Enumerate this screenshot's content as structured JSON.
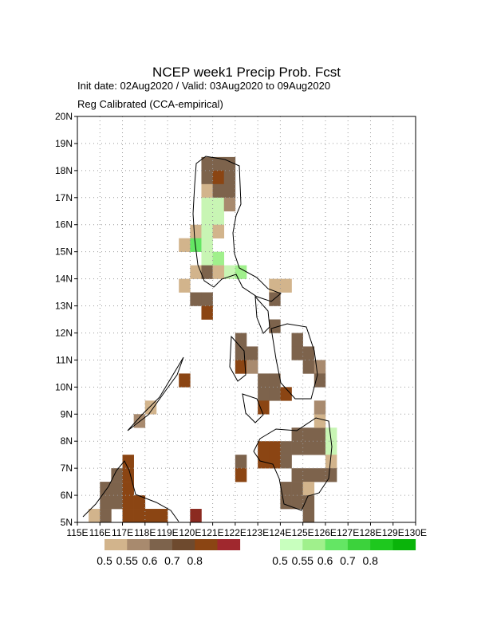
{
  "map": {
    "title": "NCEP week1 Precip Prob. Fcst",
    "subtitle": "Init date: 02Aug2020 / Valid: 03Aug2020 to 09Aug2020",
    "note": "Reg Calibrated (CCA-empirical)",
    "xlim": [
      115,
      130
    ],
    "ylim": [
      5,
      20
    ],
    "xticks": [
      {
        "value": 115,
        "label": "115E"
      },
      {
        "value": 116,
        "label": "116E"
      },
      {
        "value": 117,
        "label": "117E"
      },
      {
        "value": 118,
        "label": "118E"
      },
      {
        "value": 119,
        "label": "119E"
      },
      {
        "value": 120,
        "label": "120E"
      },
      {
        "value": 121,
        "label": "121E"
      },
      {
        "value": 122,
        "label": "122E"
      },
      {
        "value": 123,
        "label": "123E"
      },
      {
        "value": 124,
        "label": "124E"
      },
      {
        "value": 125,
        "label": "125E"
      },
      {
        "value": 126,
        "label": "126E"
      },
      {
        "value": 127,
        "label": "127E"
      },
      {
        "value": 128,
        "label": "128E"
      },
      {
        "value": 129,
        "label": "129E"
      },
      {
        "value": 130,
        "label": "130E"
      }
    ],
    "yticks": [
      {
        "value": 5,
        "label": "5N"
      },
      {
        "value": 6,
        "label": "6N"
      },
      {
        "value": 7,
        "label": "7N"
      },
      {
        "value": 8,
        "label": "8N"
      },
      {
        "value": 9,
        "label": "9N"
      },
      {
        "value": 10,
        "label": "10N"
      },
      {
        "value": 11,
        "label": "11N"
      },
      {
        "value": 12,
        "label": "12N"
      },
      {
        "value": 13,
        "label": "13N"
      },
      {
        "value": 14,
        "label": "14N"
      },
      {
        "value": 15,
        "label": "15N"
      },
      {
        "value": 16,
        "label": "16N"
      },
      {
        "value": 17,
        "label": "17N"
      },
      {
        "value": 18,
        "label": "18N"
      },
      {
        "value": 19,
        "label": "19N"
      },
      {
        "value": 20,
        "label": "20N"
      }
    ],
    "grid": true,
    "cell_size": 0.5,
    "cells": [
      [
        120.5,
        18,
        "#7d634c"
      ],
      [
        121,
        18,
        "#7d634c"
      ],
      [
        121.5,
        18,
        "#7d634c"
      ],
      [
        120.5,
        17.5,
        "#7d634c"
      ],
      [
        121,
        17.5,
        "#8b4513"
      ],
      [
        121.5,
        17.5,
        "#7d634c"
      ],
      [
        120.5,
        17,
        "#d2b48c"
      ],
      [
        121,
        17,
        "#7d634c"
      ],
      [
        121.5,
        17,
        "#7d634c"
      ],
      [
        120.5,
        16.5,
        "#c8f5b4"
      ],
      [
        121,
        16.5,
        "#c8f5b4"
      ],
      [
        121.5,
        16.5,
        "#a88a6e"
      ],
      [
        120.5,
        16,
        "#c8f5b4"
      ],
      [
        121,
        16,
        "#c8f5b4"
      ],
      [
        120,
        15.5,
        "#d2b48c"
      ],
      [
        120.5,
        15.5,
        "#c8f5b4"
      ],
      [
        121,
        15.5,
        "#d2b48c"
      ],
      [
        119.5,
        15,
        "#d2b48c"
      ],
      [
        120,
        15,
        "#64e664"
      ],
      [
        120.5,
        15,
        "#c8f5b4"
      ],
      [
        120.5,
        14.5,
        "#c8f5b4"
      ],
      [
        121,
        14.5,
        "#a0f08c"
      ],
      [
        121.5,
        14,
        "#c8f5b4"
      ],
      [
        122,
        14,
        "#a0f08c"
      ],
      [
        120,
        14,
        "#d2b48c"
      ],
      [
        120.5,
        14,
        "#7d634c"
      ],
      [
        121,
        14,
        "#d2b48c"
      ],
      [
        119.5,
        13.5,
        "#d2b48c"
      ],
      [
        120,
        13,
        "#7d634c"
      ],
      [
        120.5,
        13,
        "#7d634c"
      ],
      [
        120.5,
        12.5,
        "#8b4513"
      ],
      [
        123.5,
        13.5,
        "#d2b48c"
      ],
      [
        124,
        13.5,
        "#d2b48c"
      ],
      [
        123.5,
        13,
        "#7d634c"
      ],
      [
        122,
        11.5,
        "#7d634c"
      ],
      [
        122,
        11,
        "#7d634c"
      ],
      [
        122.5,
        11,
        "#7d634c"
      ],
      [
        122,
        10.5,
        "#8b4513"
      ],
      [
        122.5,
        10.5,
        "#a88a6e"
      ],
      [
        123.5,
        12,
        "#7d634c"
      ],
      [
        124.5,
        11.5,
        "#7d634c"
      ],
      [
        124.5,
        11,
        "#7d634c"
      ],
      [
        125,
        11,
        "#7d634c"
      ],
      [
        125,
        10.5,
        "#7d634c"
      ],
      [
        125.5,
        10.5,
        "#a88a6e"
      ],
      [
        125.5,
        10,
        "#7d634c"
      ],
      [
        123,
        10,
        "#7d634c"
      ],
      [
        123.5,
        10,
        "#7d634c"
      ],
      [
        123,
        9.5,
        "#7d634c"
      ],
      [
        123.5,
        9.5,
        "#7d634c"
      ],
      [
        124,
        9.5,
        "#8b4513"
      ],
      [
        123,
        9,
        "#8b4513"
      ],
      [
        119.5,
        10,
        "#8b4513"
      ],
      [
        118,
        9,
        "#d2b48c"
      ],
      [
        117.5,
        8.5,
        "#a88a6e"
      ],
      [
        123,
        7.5,
        "#8b4513"
      ],
      [
        123.5,
        7.5,
        "#8b4513"
      ],
      [
        123,
        7,
        "#8b4513"
      ],
      [
        123.5,
        7,
        "#8b4513"
      ],
      [
        124,
        7.5,
        "#7d634c"
      ],
      [
        124,
        7,
        "#7d634c"
      ],
      [
        124.5,
        7.5,
        "#7d634c"
      ],
      [
        124.5,
        8,
        "#7d634c"
      ],
      [
        125,
        8,
        "#7d634c"
      ],
      [
        125,
        7.5,
        "#7d634c"
      ],
      [
        125.5,
        8,
        "#7d634c"
      ],
      [
        125.5,
        7.5,
        "#7d634c"
      ],
      [
        125.5,
        8.5,
        "#d2b48c"
      ],
      [
        125.5,
        9,
        "#a88a6e"
      ],
      [
        126,
        8,
        "#c8f5b4"
      ],
      [
        126,
        7.5,
        "#c8f5b4"
      ],
      [
        126,
        7,
        "#d2b48c"
      ],
      [
        124.5,
        6.5,
        "#7d634c"
      ],
      [
        125,
        6.5,
        "#7d634c"
      ],
      [
        124.5,
        6,
        "#7d634c"
      ],
      [
        125,
        6,
        "#d2b48c"
      ],
      [
        124.5,
        5.5,
        "#7d634c"
      ],
      [
        125,
        5.5,
        "#7d634c"
      ],
      [
        125,
        5,
        "#7d634c"
      ],
      [
        124,
        5.5,
        "#7d634c"
      ],
      [
        124,
        6,
        "#7d634c"
      ],
      [
        125.5,
        6.5,
        "#7d634c"
      ],
      [
        126,
        6.5,
        "#7d634c"
      ],
      [
        122,
        7,
        "#7d634c"
      ],
      [
        122,
        6.5,
        "#8b4513"
      ],
      [
        116.5,
        6.5,
        "#7d634c"
      ],
      [
        116,
        6,
        "#7d634c"
      ],
      [
        116.5,
        6,
        "#7d634c"
      ],
      [
        116,
        5.5,
        "#7d634c"
      ],
      [
        116.5,
        5.5,
        "#7d634c"
      ],
      [
        117,
        7,
        "#8b4513"
      ],
      [
        117,
        6.5,
        "#8b4513"
      ],
      [
        117,
        6,
        "#8b4513"
      ],
      [
        117,
        5.5,
        "#8b4513"
      ],
      [
        117,
        5,
        "#8b4513"
      ],
      [
        117.5,
        5.5,
        "#8b4513"
      ],
      [
        117.5,
        5,
        "#8b4513"
      ],
      [
        118,
        5,
        "#8b4513"
      ],
      [
        118.5,
        5,
        "#8b4513"
      ],
      [
        115.5,
        5,
        "#d2b48c"
      ],
      [
        116,
        5,
        "#7d634c"
      ],
      [
        120,
        5,
        "#8b2a20"
      ]
    ],
    "legend": [
      {
        "colors": [
          "#d2b48c",
          "#a88a6e",
          "#7d634c",
          "#6e4a2e",
          "#8b4513",
          "#a0282e"
        ],
        "labels": [
          0.5,
          0.55,
          0.6,
          0.7,
          0.8
        ]
      },
      {
        "colors": [
          "#c8ffbe",
          "#a0f08c",
          "#64e664",
          "#3cd23c",
          "#1ec81e",
          "#0ab40a"
        ],
        "labels": [
          0.5,
          0.55,
          0.6,
          0.7,
          0.8
        ]
      }
    ]
  }
}
